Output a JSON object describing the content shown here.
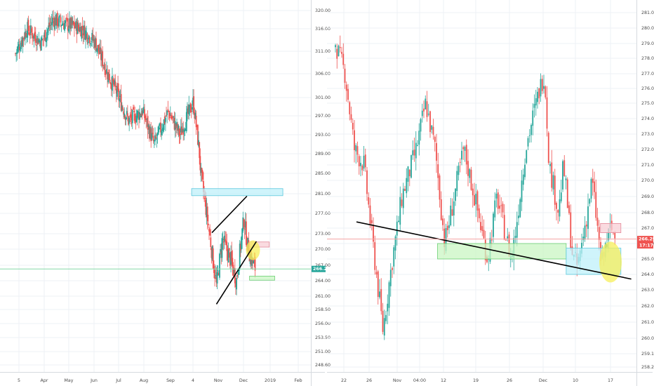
{
  "colors": {
    "up": "#26a69a",
    "down": "#ef5350",
    "grid": "#eef1f5",
    "axis_text": "#4a4a4a",
    "cyan_zone": "#bff0fa",
    "green_zone": "#c9f5c3",
    "pink_zone": "#f8cfd6",
    "yellow_marker": "#f7ef5a",
    "left_price_line": "#86d9a8",
    "right_price_line": "#f5a3a3",
    "left_price_tag": "#26a69a",
    "right_price_tag": "#ef5350",
    "trendline": "#000000"
  },
  "chart_data": [
    {
      "type": "candlestick",
      "timeframe": "daily",
      "y_axis_labels": [
        "320.00",
        "316.00",
        "311.00",
        "306.00",
        "301.00",
        "297.00",
        "293.00",
        "289.00",
        "285.00",
        "281.00",
        "277.00",
        "273.00",
        "270.00",
        "267.00",
        "264.00",
        "261.00",
        "258.50",
        "256.00",
        "253.50",
        "251.00",
        "248.60"
      ],
      "x_axis_labels": [
        "5",
        "Apr",
        "May",
        "Jun",
        "Jul",
        "Aug",
        "Sep",
        "4",
        "Nov",
        "Dec",
        "2019",
        "Feb"
      ],
      "ylim": [
        247,
        321
      ],
      "last_price": "266.29",
      "price_path": [
        [
          "Mar 5",
          312
        ],
        [
          "Mar 15",
          316
        ],
        [
          "Apr 1",
          313
        ],
        [
          "Apr 15",
          318
        ],
        [
          "May 1",
          317
        ],
        [
          "May 20",
          316
        ],
        [
          "Jun 5",
          313
        ],
        [
          "Jun 20",
          306
        ],
        [
          "Jul 1",
          302
        ],
        [
          "Jul 15",
          296
        ],
        [
          "Aug 1",
          298
        ],
        [
          "Aug 15",
          291
        ],
        [
          "Sep 1",
          298
        ],
        [
          "Sep 15",
          293
        ],
        [
          "Oct 1",
          300
        ],
        [
          "Oct 8",
          290
        ],
        [
          "Oct 10",
          285
        ],
        [
          "Oct 18",
          276
        ],
        [
          "Oct 29",
          263
        ],
        [
          "Nov 5",
          272
        ],
        [
          "Nov 15",
          268
        ],
        [
          "Nov 22",
          264
        ],
        [
          "Dec 1",
          276
        ],
        [
          "Dec 5",
          271
        ],
        [
          "Dec 10",
          268
        ],
        [
          "Dec 15",
          266.3
        ]
      ],
      "annotations": {
        "trendlines": [
          {
            "from": [
              "Oct 25",
              273.2
            ],
            "to": [
              "Dec 5",
              280.5
            ]
          },
          {
            "from": [
              "Oct 30",
              259.5
            ],
            "to": [
              "Dec 16",
              271.5
            ]
          }
        ],
        "zones": [
          {
            "color": "cyan",
            "from": [
              "Oct 2",
              282
            ],
            "to": [
              "Jan 15",
              280.6
            ]
          },
          {
            "color": "pink",
            "from": [
              "Dec 8",
              271.4
            ],
            "to": [
              "Dec 31",
              270.4
            ]
          },
          {
            "color": "green",
            "from": [
              "Dec 8",
              264.9
            ],
            "to": [
              "Jan 6",
              264.1
            ]
          }
        ],
        "markers": [
          {
            "color": "yellow",
            "at": [
              "Dec 12",
              269.8
            ]
          }
        ]
      }
    },
    {
      "type": "candlestick",
      "timeframe": "hourly",
      "y_axis_labels": [
        "281.00",
        "280.00",
        "279.00",
        "278.00",
        "277.00",
        "276.00",
        "275.00",
        "274.00",
        "273.00",
        "272.00",
        "271.00",
        "270.00",
        "269.00",
        "268.00",
        "267.00",
        "266.00",
        "265.00",
        "264.00",
        "263.00",
        "262.00",
        "261.00",
        "260.00",
        "259.10",
        "258.25"
      ],
      "x_axis_labels": [
        "22",
        "26",
        "Nov",
        "04:00",
        "12",
        "19",
        "26",
        "Dec",
        "10",
        "17"
      ],
      "ylim": [
        257.7,
        281.8
      ],
      "last_price": "266.29",
      "countdown": "17:17",
      "price_path": [
        [
          "Oct 20",
          279
        ],
        [
          "Oct 22",
          277
        ],
        [
          "Oct 24",
          272
        ],
        [
          "Oct 26",
          271
        ],
        [
          "Oct 29",
          263
        ],
        [
          "Oct 30",
          260.5
        ],
        [
          "Nov 1",
          265
        ],
        [
          "Nov 3",
          269
        ],
        [
          "Nov 6",
          272
        ],
        [
          "Nov 8",
          275
        ],
        [
          "Nov 10",
          272
        ],
        [
          "Nov 12",
          266
        ],
        [
          "Nov 14",
          269
        ],
        [
          "Nov 16",
          272
        ],
        [
          "Nov 19",
          268
        ],
        [
          "Nov 21",
          265
        ],
        [
          "Nov 23",
          269
        ],
        [
          "Nov 26",
          265
        ],
        [
          "Nov 27",
          267
        ],
        [
          "Nov 29",
          272
        ],
        [
          "Dec 2",
          276
        ],
        [
          "Dec 3",
          277
        ],
        [
          "Dec 4",
          271
        ],
        [
          "Dec 6",
          268
        ],
        [
          "Dec 7",
          271
        ],
        [
          "Dec 9",
          265
        ],
        [
          "Dec 10",
          264.5
        ],
        [
          "Dec 12",
          268
        ],
        [
          "Dec 13",
          270
        ],
        [
          "Dec 14",
          267.5
        ],
        [
          "Dec 15",
          264.5
        ],
        [
          "Dec 16",
          266
        ],
        [
          "Dec 17",
          267
        ],
        [
          "Dec 18",
          266.3
        ]
      ],
      "annotations": {
        "trendlines": [
          {
            "from": [
              "Oct 24",
              267.4
            ],
            "to": [
              "Dec 21",
              263.7
            ]
          }
        ],
        "zones": [
          {
            "color": "green",
            "from": [
              "Nov 10",
              266
            ],
            "to": [
              "Dec 8",
              265
            ]
          },
          {
            "color": "cyan",
            "from": [
              "Dec 8",
              265.7
            ],
            "to": [
              "Dec 19",
              264.0
            ]
          },
          {
            "color": "pink",
            "from": [
              "Dec 15",
              267.3
            ],
            "to": [
              "Dec 19",
              266.7
            ]
          }
        ],
        "markers": [
          {
            "color": "yellow",
            "at": [
              "Dec 17",
              264.8
            ]
          }
        ]
      }
    }
  ]
}
